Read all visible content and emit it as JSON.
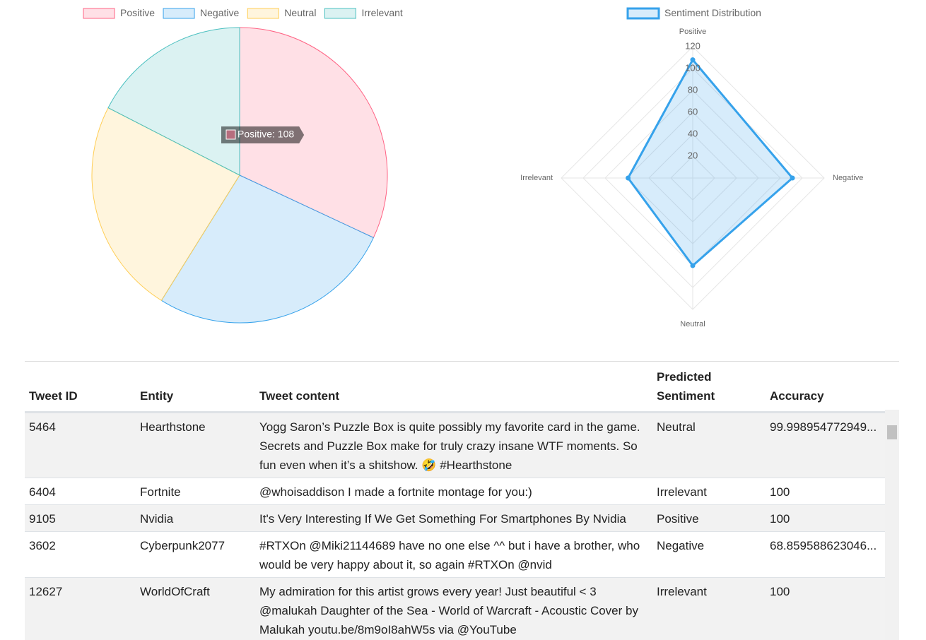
{
  "chart_data": [
    {
      "type": "pie",
      "categories": [
        "Positive",
        "Negative",
        "Neutral",
        "Irrelevant"
      ],
      "values": [
        108,
        91,
        80,
        59
      ],
      "colors": [
        "#ff6384",
        "#36a2eb",
        "#ffce56",
        "#4bc0c0"
      ],
      "tooltip": "Positive: 108"
    },
    {
      "type": "radar",
      "categories": [
        "Positive",
        "Negative",
        "Neutral",
        "Irrelevant"
      ],
      "series": [
        {
          "name": "Sentiment Distribution",
          "color": "#36a2eb",
          "values": [
            108,
            91,
            80,
            59
          ]
        }
      ],
      "rlim": [
        0,
        120
      ],
      "rticks": [
        20,
        40,
        60,
        80,
        100,
        120
      ],
      "grid": true
    }
  ],
  "table": {
    "columns": [
      "Tweet ID",
      "Entity",
      "Tweet content",
      "Predicted Sentiment",
      "Accuracy"
    ],
    "rows": [
      [
        "5464",
        "Hearthstone",
        "Yogg Saron’s Puzzle Box is quite possibly my favorite card in the game. Secrets and Puzzle Box make for truly crazy insane WTF moments. So fun even when it’s a shitshow. 🤣 #Hearthstone",
        "Neutral",
        "99.998954772949..."
      ],
      [
        "6404",
        "Fortnite",
        "@whoisaddison I made a fortnite montage for you:)",
        "Irrelevant",
        "100"
      ],
      [
        "9105",
        "Nvidia",
        "It's Very Interesting If We Get Something For Smartphones By Nvidia",
        "Positive",
        "100"
      ],
      [
        "3602",
        "Cyberpunk2077",
        "#RTXOn @Miki21144689 have no one else ^^ but i have a brother, who would be very happy about it, so again #RTXOn @nvid",
        "Negative",
        "68.859588623046..."
      ],
      [
        "12627",
        "WorldOfCraft",
        "My admiration for this artist grows every year! Just beautiful < 3 @malukah Daughter of the Sea - World of Warcraft - Acoustic Cover by Malukah youtu.be/8m9oI8ahW5s via @YouTube",
        "Irrelevant",
        "100"
      ]
    ]
  }
}
